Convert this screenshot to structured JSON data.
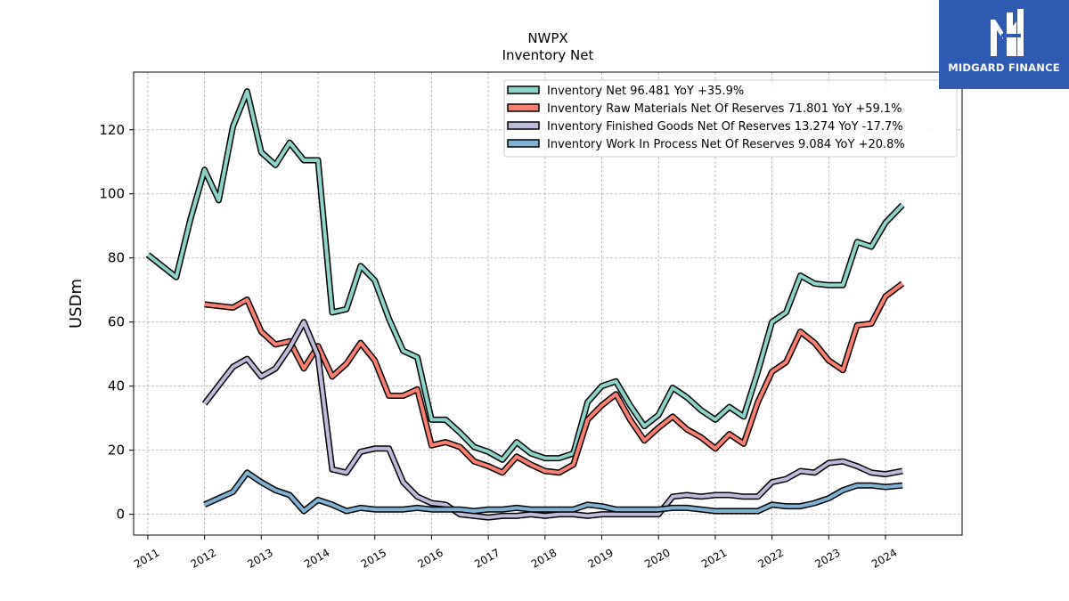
{
  "logo": {
    "text": "MIDGARD FINANCE"
  },
  "chart_data": {
    "type": "line",
    "title": "NWPX",
    "subtitle": "Inventory Net",
    "xlabel": "",
    "ylabel": "USDm",
    "xlim": [
      2010.75,
      2025.35
    ],
    "ylim": [
      -6.5,
      138
    ],
    "yticks": [
      0,
      20,
      40,
      60,
      80,
      100,
      120
    ],
    "xticks": [
      2011,
      2012,
      2013,
      2014,
      2015,
      2016,
      2017,
      2018,
      2019,
      2020,
      2021,
      2022,
      2023,
      2024
    ],
    "xtick_labels": [
      "2011",
      "2012",
      "2013",
      "2014",
      "2015",
      "2016",
      "2017",
      "2018",
      "2019",
      "2020",
      "2021",
      "2022",
      "2023",
      "2024"
    ],
    "grid": true,
    "legend_position": "top-right",
    "series": [
      {
        "name": "Inventory Net",
        "legend_label": "Inventory Net  96.481 YoY +35.9%",
        "color": "#8dd3c7",
        "x": [
          2011.0,
          2011.5,
          2011.75,
          2012.0,
          2012.25,
          2012.5,
          2012.75,
          2013.0,
          2013.25,
          2013.5,
          2013.75,
          2014.0,
          2014.25,
          2014.5,
          2014.75,
          2015.0,
          2015.25,
          2015.5,
          2015.75,
          2016.0,
          2016.25,
          2016.5,
          2016.75,
          2017.0,
          2017.25,
          2017.5,
          2017.75,
          2018.0,
          2018.25,
          2018.5,
          2018.75,
          2019.0,
          2019.25,
          2019.5,
          2019.75,
          2020.0,
          2020.25,
          2020.5,
          2020.75,
          2021.0,
          2021.25,
          2021.5,
          2021.75,
          2022.0,
          2022.25,
          2022.5,
          2022.75,
          2023.0,
          2023.25,
          2023.5,
          2023.75,
          2024.0,
          2024.3
        ],
        "values": [
          81,
          74,
          92,
          107.5,
          98,
          121,
          132,
          113,
          109,
          116,
          110.5,
          110.5,
          63,
          64,
          77.5,
          73,
          61,
          51,
          49,
          29.5,
          29.5,
          25.5,
          21,
          19.5,
          17,
          22.5,
          19,
          17.5,
          17.5,
          19,
          35,
          40,
          41.5,
          34,
          27.5,
          31,
          39.5,
          36.5,
          32.5,
          29.5,
          33.5,
          30.5,
          44.5,
          60,
          63,
          74.5,
          72,
          71.5,
          71.5,
          85,
          83.5,
          91,
          96.5
        ]
      },
      {
        "name": "Inventory Raw Materials Net Of Reserves",
        "legend_label": "Inventory Raw Materials Net Of Reserves  71.801 YoY +59.1%",
        "color": "#fb8072",
        "x": [
          2012.0,
          2012.5,
          2012.75,
          2013.0,
          2013.25,
          2013.5,
          2013.75,
          2014.0,
          2014.25,
          2014.5,
          2014.75,
          2015.0,
          2015.25,
          2015.5,
          2015.75,
          2016.0,
          2016.25,
          2016.5,
          2016.75,
          2017.0,
          2017.25,
          2017.5,
          2017.75,
          2018.0,
          2018.25,
          2018.5,
          2018.75,
          2019.0,
          2019.25,
          2019.5,
          2019.75,
          2020.0,
          2020.25,
          2020.5,
          2020.75,
          2021.0,
          2021.25,
          2021.5,
          2021.75,
          2022.0,
          2022.25,
          2022.5,
          2022.75,
          2023.0,
          2023.25,
          2023.5,
          2023.75,
          2024.0,
          2024.3
        ],
        "values": [
          65.5,
          64.5,
          67,
          57,
          53,
          54,
          45.5,
          52.5,
          43,
          47,
          53.5,
          48,
          37,
          37,
          39,
          21.5,
          22.5,
          21,
          16.5,
          15,
          13,
          18,
          15.5,
          13.5,
          13,
          15.5,
          29.5,
          34,
          37.5,
          29.5,
          23,
          27,
          30.5,
          26.5,
          24,
          20.5,
          25,
          22,
          35,
          44.5,
          47.5,
          57,
          53.5,
          48,
          45,
          59,
          59.5,
          68,
          72
        ]
      },
      {
        "name": "Inventory Finished Goods Net Of Reserves",
        "legend_label": "Inventory Finished Goods Net Of Reserves  13.274 YoY -17.7%",
        "color": "#bebada",
        "x": [
          2012.0,
          2012.5,
          2012.75,
          2013.0,
          2013.25,
          2013.5,
          2013.75,
          2014.0,
          2014.25,
          2014.5,
          2014.75,
          2015.0,
          2015.25,
          2015.5,
          2015.75,
          2016.0,
          2016.25,
          2016.5,
          2016.75,
          2017.0,
          2017.25,
          2017.5,
          2017.75,
          2018.0,
          2018.25,
          2018.5,
          2018.75,
          2019.0,
          2019.25,
          2019.5,
          2019.75,
          2020.0,
          2020.25,
          2020.5,
          2020.75,
          2021.0,
          2021.25,
          2021.5,
          2021.75,
          2022.0,
          2022.25,
          2022.5,
          2022.75,
          2023.0,
          2023.25,
          2023.5,
          2023.75,
          2024.0,
          2024.3
        ],
        "values": [
          34.5,
          46,
          48.5,
          43,
          45.5,
          52,
          60,
          49.5,
          14,
          13,
          19.5,
          20.5,
          20.5,
          10,
          5.5,
          3.5,
          3,
          0,
          -0.5,
          -1,
          -0.5,
          -0.5,
          0,
          -0.5,
          0,
          0,
          -0.5,
          0,
          0,
          0,
          0,
          0,
          5.5,
          6,
          5.5,
          6,
          6,
          5.5,
          5.5,
          10,
          11,
          13.5,
          13,
          16,
          16.5,
          15,
          13,
          12.5,
          13.5
        ]
      },
      {
        "name": "Inventory Work In Process Net Of Reserves",
        "legend_label": "Inventory Work In Process Net Of Reserves  9.084 YoY +20.8%",
        "color": "#80b1d3",
        "x": [
          2012.0,
          2012.5,
          2012.75,
          2013.0,
          2013.25,
          2013.5,
          2013.75,
          2014.0,
          2014.25,
          2014.5,
          2014.75,
          2015.0,
          2015.25,
          2015.5,
          2015.75,
          2016.0,
          2016.25,
          2016.5,
          2016.75,
          2017.0,
          2017.25,
          2017.5,
          2017.75,
          2018.0,
          2018.25,
          2018.5,
          2018.75,
          2019.0,
          2019.25,
          2019.5,
          2019.75,
          2020.0,
          2020.25,
          2020.5,
          2020.75,
          2021.0,
          2021.25,
          2021.5,
          2021.75,
          2022.0,
          2022.25,
          2022.5,
          2022.75,
          2023.0,
          2023.25,
          2023.5,
          2023.75,
          2024.0,
          2024.3
        ],
        "values": [
          3,
          7,
          13,
          10,
          7.5,
          6,
          1,
          4.5,
          3,
          1,
          2,
          1.5,
          1.5,
          1.5,
          2,
          1.5,
          1.5,
          1.5,
          1,
          1.5,
          1.5,
          2,
          1.5,
          1.5,
          1.5,
          1.5,
          3,
          2.5,
          1.5,
          1.5,
          1.5,
          1.5,
          2,
          2,
          1.5,
          1,
          1,
          1,
          1,
          3,
          2.5,
          2.5,
          3.5,
          5,
          7.5,
          9,
          9,
          8.5,
          9
        ]
      }
    ]
  }
}
